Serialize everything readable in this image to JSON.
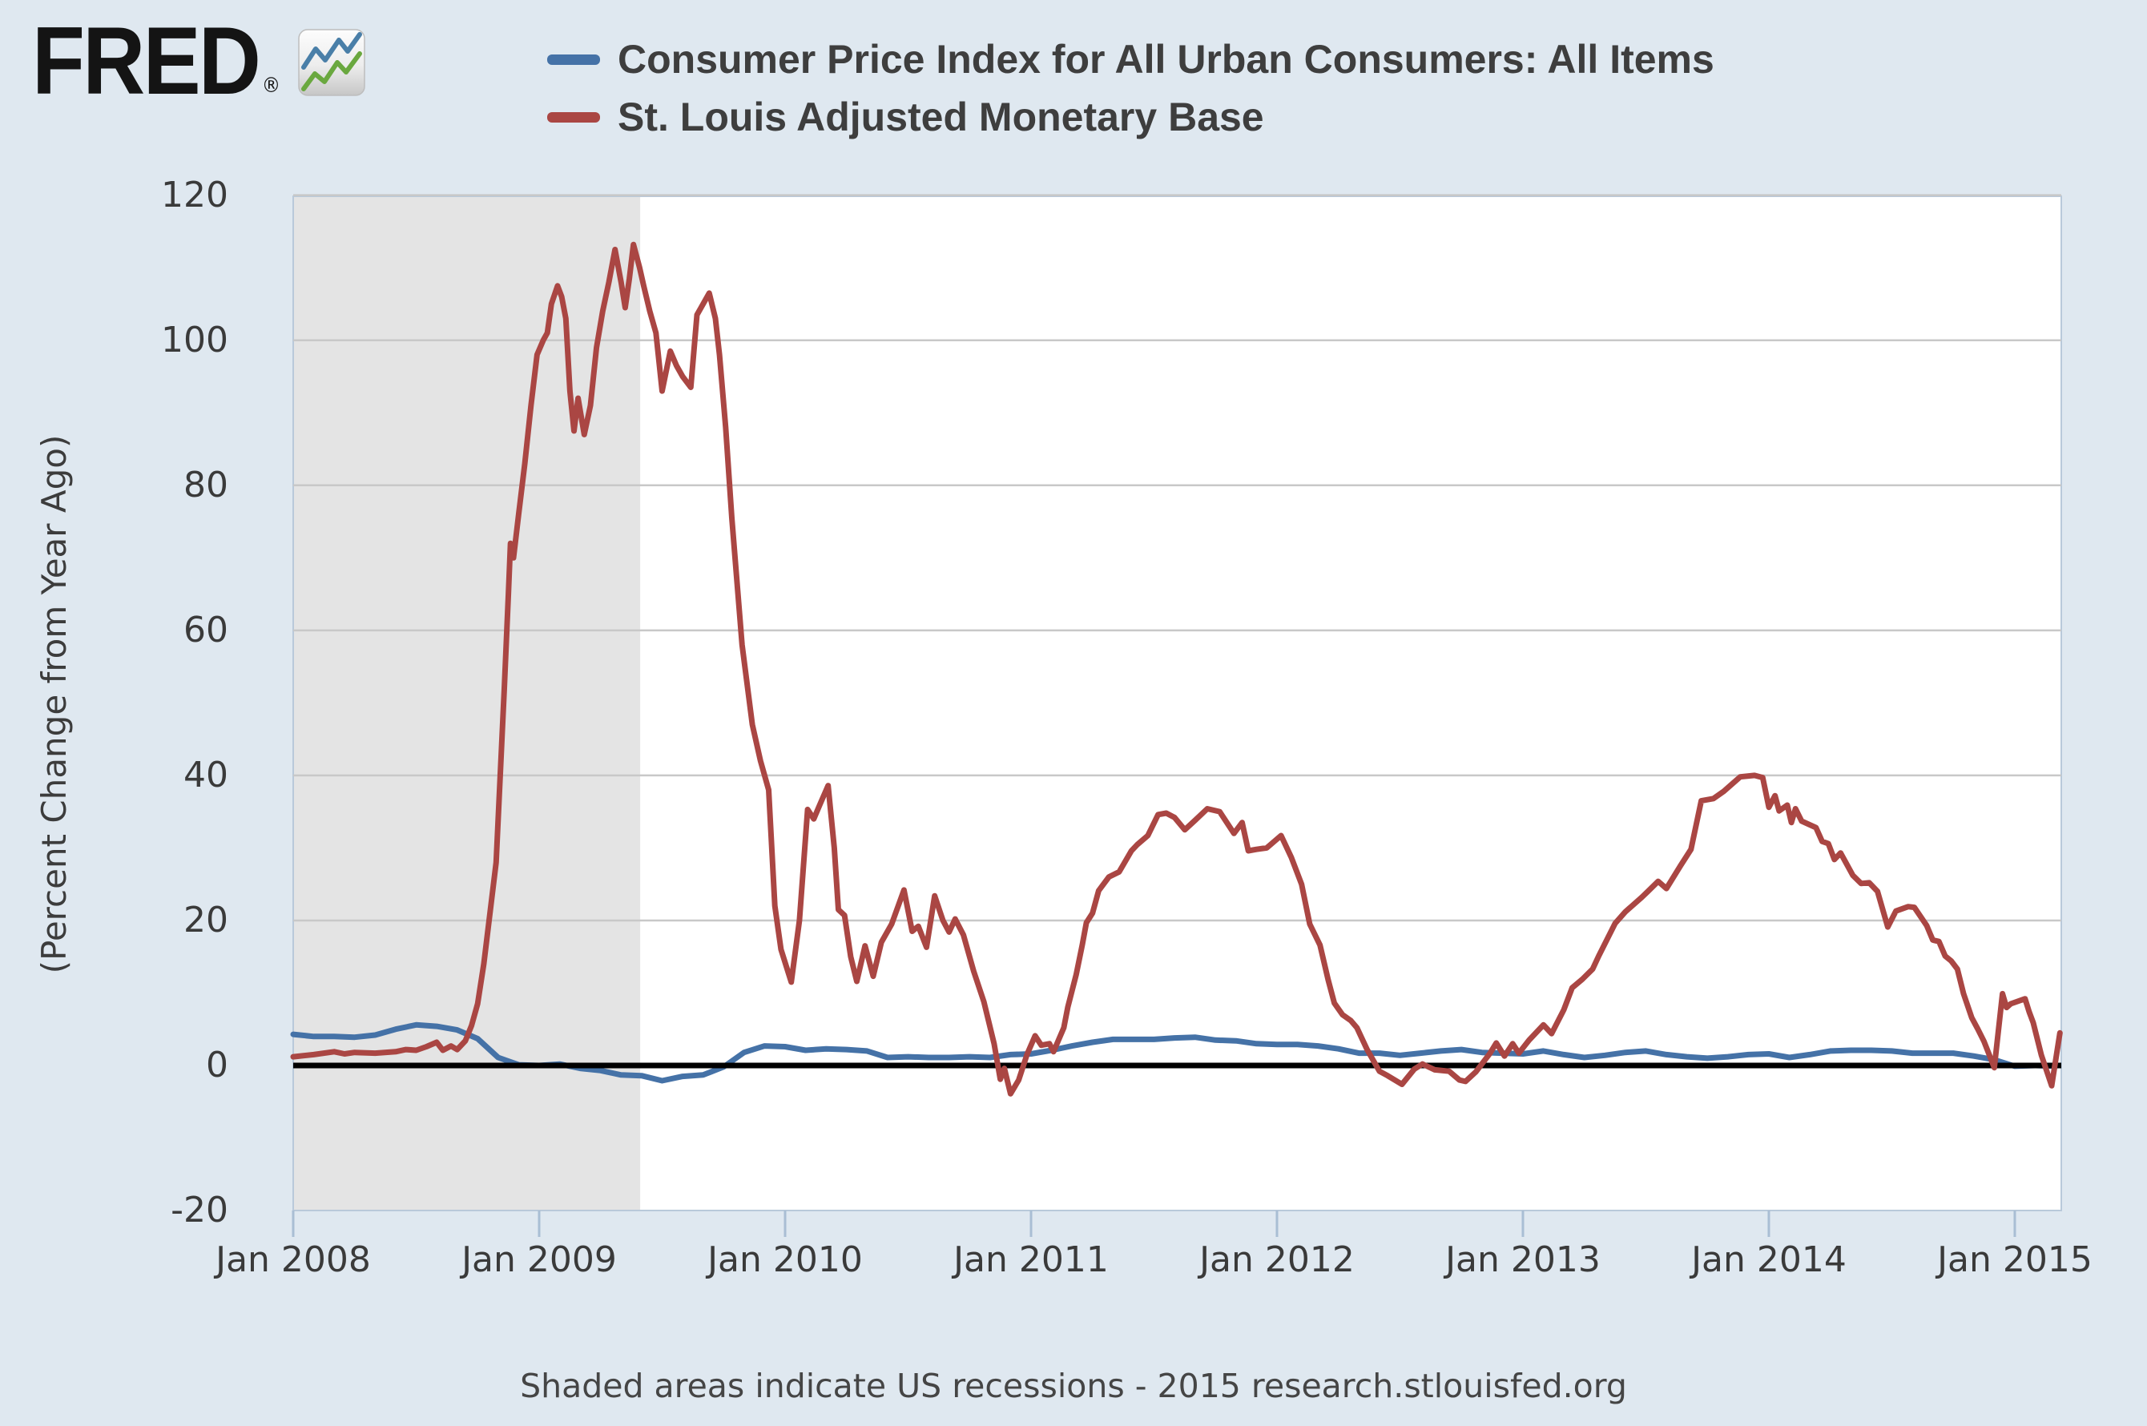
{
  "header": {
    "logo_text": "FRED",
    "registered_mark": "®"
  },
  "legend": [
    {
      "label": "Consumer Price Index for All Urban Consumers: All Items",
      "color": "#4572A7"
    },
    {
      "label": "St. Louis Adjusted Monetary Base",
      "color": "#AA4643"
    }
  ],
  "y_axis": {
    "title": "(Percent Change from Year Ago)",
    "ticks": [
      120,
      100,
      80,
      60,
      40,
      20,
      0,
      -20
    ]
  },
  "x_axis": {
    "tick_labels": [
      "Jan 2008",
      "Jan 2009",
      "Jan 2010",
      "Jan 2011",
      "Jan 2012",
      "Jan 2013",
      "Jan 2014",
      "Jan 2015"
    ]
  },
  "footer": {
    "note": "Shaded areas indicate US recessions - 2015 research.stlouisfed.org"
  },
  "colors": {
    "page_bg": "#DFE8F0",
    "plot_bg": "#FFFFFF",
    "recession_band": "#E4E4E4",
    "grid": "#C8C8C8",
    "zero_line": "#000000",
    "plot_border": "#B9C9DA",
    "axis_tick": "#A9BED4",
    "cpi_line": "#4572A7",
    "base_line": "#AA4643",
    "logo_icon_blue": "#4A7FA8",
    "logo_icon_green": "#6AA83F"
  },
  "chart_data": {
    "type": "line",
    "x_unit": "months since Jan 2008 (fractional = intra-month, data is biweekly for monetary base)",
    "x_tick_months": [
      0,
      12,
      24,
      36,
      48,
      60,
      72,
      84
    ],
    "x_range_months": [
      0,
      86.3
    ],
    "ylim": [
      -20,
      120
    ],
    "ylabel": "(Percent Change from Year Ago)",
    "grid_values": [
      120,
      100,
      80,
      60,
      40,
      20
    ],
    "zero_line": 0,
    "grid_on": true,
    "legend_position": "top",
    "recession_band_months": [
      0,
      16.93
    ],
    "series": [
      {
        "name": "Consumer Price Index for All Urban Consumers: All Items",
        "color": "#4572A7",
        "start_month": 0,
        "step_months": 1,
        "values": [
          4.3,
          4.0,
          4.0,
          3.9,
          4.2,
          5.0,
          5.6,
          5.4,
          4.9,
          3.7,
          1.1,
          0.1,
          0.0,
          0.2,
          -0.4,
          -0.7,
          -1.3,
          -1.4,
          -2.1,
          -1.5,
          -1.3,
          -0.2,
          1.8,
          2.7,
          2.6,
          2.1,
          2.3,
          2.2,
          2.0,
          1.1,
          1.2,
          1.1,
          1.1,
          1.2,
          1.1,
          1.5,
          1.6,
          2.1,
          2.7,
          3.2,
          3.6,
          3.6,
          3.6,
          3.8,
          3.9,
          3.5,
          3.4,
          3.0,
          2.9,
          2.9,
          2.7,
          2.3,
          1.7,
          1.7,
          1.4,
          1.7,
          2.0,
          2.2,
          1.8,
          1.7,
          1.6,
          2.0,
          1.5,
          1.1,
          1.4,
          1.8,
          2.0,
          1.5,
          1.2,
          1.0,
          1.2,
          1.5,
          1.6,
          1.1,
          1.5,
          2.0,
          2.1,
          2.1,
          2.0,
          1.7,
          1.7,
          1.7,
          1.3,
          0.8,
          -0.1,
          0.0,
          -0.1
        ]
      },
      {
        "name": "St. Louis Adjusted Monetary Base",
        "color": "#AA4643",
        "points": [
          [
            0,
            1.2
          ],
          [
            1,
            1.5
          ],
          [
            2,
            1.9
          ],
          [
            2.5,
            1.6
          ],
          [
            3,
            1.8
          ],
          [
            4,
            1.7
          ],
          [
            5,
            1.9
          ],
          [
            5.5,
            2.2
          ],
          [
            6,
            2.1
          ],
          [
            6.5,
            2.6
          ],
          [
            7,
            3.2
          ],
          [
            7.3,
            2.1
          ],
          [
            7.7,
            2.7
          ],
          [
            8,
            2.2
          ],
          [
            8.4,
            3.4
          ],
          [
            8.7,
            5.5
          ],
          [
            9,
            8.5
          ],
          [
            9.3,
            14
          ],
          [
            9.6,
            21
          ],
          [
            9.9,
            28
          ],
          [
            10.1,
            40
          ],
          [
            10.3,
            52
          ],
          [
            10.5,
            65
          ],
          [
            10.6,
            72
          ],
          [
            10.75,
            70
          ],
          [
            11,
            76
          ],
          [
            11.3,
            83
          ],
          [
            11.6,
            91
          ],
          [
            11.9,
            98
          ],
          [
            12.2,
            100
          ],
          [
            12.4,
            101
          ],
          [
            12.6,
            105
          ],
          [
            12.9,
            107.5
          ],
          [
            13.1,
            106
          ],
          [
            13.3,
            103
          ],
          [
            13.5,
            93
          ],
          [
            13.7,
            87.5
          ],
          [
            13.9,
            92
          ],
          [
            14.2,
            87
          ],
          [
            14.5,
            91
          ],
          [
            14.8,
            99
          ],
          [
            15.1,
            104
          ],
          [
            15.4,
            108
          ],
          [
            15.7,
            112.5
          ],
          [
            16,
            108
          ],
          [
            16.2,
            104.5
          ],
          [
            16.4,
            108.5
          ],
          [
            16.6,
            113.2
          ],
          [
            16.9,
            110
          ],
          [
            17.1,
            107.5
          ],
          [
            17.4,
            104
          ],
          [
            17.7,
            101
          ],
          [
            18,
            93
          ],
          [
            18.4,
            98.5
          ],
          [
            18.7,
            96.5
          ],
          [
            19,
            95
          ],
          [
            19.4,
            93.5
          ],
          [
            19.7,
            103.5
          ],
          [
            20,
            105
          ],
          [
            20.3,
            106.5
          ],
          [
            20.6,
            103
          ],
          [
            20.8,
            98
          ],
          [
            21.1,
            88
          ],
          [
            21.4,
            75.5
          ],
          [
            21.9,
            58
          ],
          [
            22.4,
            47
          ],
          [
            22.8,
            42
          ],
          [
            23.2,
            38
          ],
          [
            23.5,
            22
          ],
          [
            23.8,
            16
          ],
          [
            24.3,
            11.5
          ],
          [
            24.7,
            20
          ],
          [
            25.1,
            35.3
          ],
          [
            25.4,
            34
          ],
          [
            25.7,
            36
          ],
          [
            26.1,
            38.6
          ],
          [
            26.4,
            30
          ],
          [
            26.6,
            21.5
          ],
          [
            26.9,
            20.7
          ],
          [
            27.2,
            15
          ],
          [
            27.5,
            11.6
          ],
          [
            27.9,
            16.5
          ],
          [
            28.3,
            12.3
          ],
          [
            28.7,
            17
          ],
          [
            29.2,
            19.5
          ],
          [
            29.8,
            24.2
          ],
          [
            30.2,
            18.5
          ],
          [
            30.5,
            19.2
          ],
          [
            30.9,
            16.3
          ],
          [
            31.3,
            23.4
          ],
          [
            31.7,
            20
          ],
          [
            32,
            18.4
          ],
          [
            32.3,
            20.2
          ],
          [
            32.7,
            18
          ],
          [
            33.2,
            13
          ],
          [
            33.7,
            8.8
          ],
          [
            34.2,
            3
          ],
          [
            34.5,
            -1.9
          ],
          [
            34.7,
            -0.4
          ],
          [
            35,
            -3.9
          ],
          [
            35.4,
            -2
          ],
          [
            35.8,
            1.5
          ],
          [
            36.2,
            4.1
          ],
          [
            36.5,
            2.8
          ],
          [
            36.9,
            3
          ],
          [
            37.1,
            1.9
          ],
          [
            37.6,
            5.2
          ],
          [
            37.8,
            8.1
          ],
          [
            38.2,
            12.5
          ],
          [
            38.5,
            16.6
          ],
          [
            38.7,
            19.7
          ],
          [
            39,
            21
          ],
          [
            39.3,
            24.1
          ],
          [
            39.8,
            26
          ],
          [
            40.3,
            26.7
          ],
          [
            40.9,
            29.6
          ],
          [
            41.2,
            30.5
          ],
          [
            41.7,
            31.7
          ],
          [
            42.2,
            34.6
          ],
          [
            42.6,
            34.8
          ],
          [
            43,
            34.2
          ],
          [
            43.5,
            32.5
          ],
          [
            44,
            33.8
          ],
          [
            44.6,
            35.4
          ],
          [
            45.2,
            35
          ],
          [
            45.9,
            32
          ],
          [
            46.3,
            33.5
          ],
          [
            46.6,
            29.6
          ],
          [
            47,
            29.8
          ],
          [
            47.5,
            30
          ],
          [
            48.2,
            31.7
          ],
          [
            48.7,
            28.7
          ],
          [
            49.2,
            25
          ],
          [
            49.6,
            19.5
          ],
          [
            50.1,
            16.6
          ],
          [
            50.5,
            11.8
          ],
          [
            50.8,
            8.6
          ],
          [
            51.2,
            7
          ],
          [
            51.6,
            6.2
          ],
          [
            51.9,
            5.2
          ],
          [
            52.4,
            2.2
          ],
          [
            53,
            -0.8
          ],
          [
            53.4,
            -1.4
          ],
          [
            54.1,
            -2.6
          ],
          [
            54.7,
            -0.5
          ],
          [
            55.1,
            0.2
          ],
          [
            55.7,
            -0.6
          ],
          [
            56.4,
            -0.8
          ],
          [
            56.9,
            -2
          ],
          [
            57.2,
            -2.2
          ],
          [
            57.7,
            -0.9
          ],
          [
            58.4,
            1.7
          ],
          [
            58.7,
            3.1
          ],
          [
            59.1,
            1.3
          ],
          [
            59.5,
            3
          ],
          [
            59.8,
            1.7
          ],
          [
            60.3,
            3.5
          ],
          [
            61,
            5.6
          ],
          [
            61.4,
            4.4
          ],
          [
            62,
            7.7
          ],
          [
            62.4,
            10.7
          ],
          [
            62.9,
            11.9
          ],
          [
            63.4,
            13.3
          ],
          [
            63.7,
            15.1
          ],
          [
            64.5,
            19.6
          ],
          [
            65,
            21.2
          ],
          [
            65.8,
            23.2
          ],
          [
            66.1,
            24
          ],
          [
            66.6,
            25.4
          ],
          [
            67,
            24.4
          ],
          [
            67.7,
            27.6
          ],
          [
            68.2,
            29.8
          ],
          [
            68.7,
            36.5
          ],
          [
            69.3,
            36.8
          ],
          [
            69.8,
            37.8
          ],
          [
            70.6,
            39.8
          ],
          [
            71.3,
            40
          ],
          [
            71.7,
            39.7
          ],
          [
            72,
            35.6
          ],
          [
            72.3,
            37.2
          ],
          [
            72.5,
            35.1
          ],
          [
            72.9,
            35.9
          ],
          [
            73.1,
            33.5
          ],
          [
            73.3,
            35.4
          ],
          [
            73.6,
            33.7
          ],
          [
            74.3,
            32.8
          ],
          [
            74.6,
            30.9
          ],
          [
            74.9,
            30.6
          ],
          [
            75.2,
            28.4
          ],
          [
            75.5,
            29.3
          ],
          [
            76.1,
            26.2
          ],
          [
            76.5,
            25.1
          ],
          [
            76.9,
            25.2
          ],
          [
            77.3,
            24
          ],
          [
            77.8,
            19.1
          ],
          [
            78.2,
            21.3
          ],
          [
            78.8,
            21.9
          ],
          [
            79.1,
            21.8
          ],
          [
            79.7,
            19.3
          ],
          [
            80,
            17.3
          ],
          [
            80.3,
            17.1
          ],
          [
            80.6,
            15.1
          ],
          [
            80.9,
            14.4
          ],
          [
            81.2,
            13.3
          ],
          [
            81.5,
            9.9
          ],
          [
            81.9,
            6.6
          ],
          [
            82.2,
            5
          ],
          [
            82.5,
            3.3
          ],
          [
            83,
            -0.3
          ],
          [
            83.4,
            9.9
          ],
          [
            83.6,
            8
          ],
          [
            83.8,
            8.5
          ],
          [
            84.5,
            9.2
          ],
          [
            84.7,
            7.4
          ],
          [
            84.9,
            5.9
          ],
          [
            85.3,
            1.4
          ],
          [
            85.8,
            -2.8
          ],
          [
            86.2,
            4.5
          ]
        ]
      }
    ]
  }
}
